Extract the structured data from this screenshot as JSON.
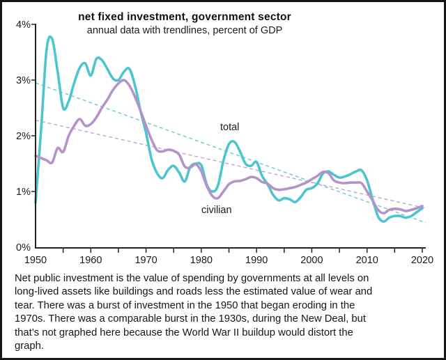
{
  "header": {
    "title": "net fixed investment, government sector",
    "subtitle": "annual data with trendlines, percent of GDP"
  },
  "chart_data": {
    "type": "line",
    "title": "net fixed investment, government sector",
    "subtitle": "annual data with trendlines, percent of GDP",
    "xlabel": "",
    "ylabel": "percent of GDP",
    "xlim": [
      1950,
      2020
    ],
    "ylim": [
      0,
      4
    ],
    "grid": false,
    "legend_position": "inline-labels",
    "x_tick_labels": [
      1950,
      1960,
      1970,
      1980,
      1990,
      2000,
      2010,
      2020
    ],
    "x_minor_tick_step": 5,
    "y_tick_labels": [
      "0%",
      "1%",
      "2%",
      "3%",
      "4%"
    ],
    "x_start_year": 1950,
    "series": [
      {
        "name": "total",
        "color": "#4cc5ce",
        "values": [
          0.8,
          2.1,
          3.55,
          3.74,
          3.15,
          2.5,
          2.62,
          2.95,
          3.22,
          3.3,
          3.08,
          3.38,
          3.36,
          3.2,
          3.03,
          3.0,
          3.15,
          3.2,
          2.9,
          2.45,
          2.05,
          1.58,
          1.33,
          1.24,
          1.39,
          1.46,
          1.34,
          1.18,
          1.44,
          1.5,
          1.47,
          1.12,
          1.0,
          1.1,
          1.55,
          1.85,
          1.89,
          1.72,
          1.5,
          1.46,
          1.53,
          1.28,
          1.13,
          0.94,
          0.84,
          0.88,
          0.86,
          0.81,
          0.9,
          1.03,
          1.06,
          1.14,
          1.32,
          1.36,
          1.3,
          1.25,
          1.27,
          1.31,
          1.36,
          1.38,
          1.2,
          0.86,
          0.55,
          0.46,
          0.53,
          0.56,
          0.56,
          0.53,
          0.56,
          0.63,
          0.7
        ]
      },
      {
        "name": "civilian",
        "color": "#b592c8",
        "values": [
          1.64,
          1.6,
          1.56,
          1.52,
          1.78,
          1.71,
          2.0,
          2.18,
          2.3,
          2.18,
          2.21,
          2.33,
          2.5,
          2.65,
          2.82,
          2.94,
          3.0,
          2.9,
          2.7,
          2.45,
          2.18,
          1.93,
          1.74,
          1.72,
          1.75,
          1.73,
          1.66,
          1.45,
          1.43,
          1.49,
          1.36,
          1.1,
          0.92,
          0.88,
          1.0,
          1.13,
          1.18,
          1.19,
          1.22,
          1.26,
          1.24,
          1.17,
          1.14,
          1.06,
          1.03,
          1.04,
          1.06,
          1.08,
          1.12,
          1.16,
          1.22,
          1.28,
          1.35,
          1.33,
          1.2,
          1.16,
          1.15,
          1.16,
          1.16,
          1.15,
          1.0,
          0.84,
          0.67,
          0.61,
          0.67,
          0.69,
          0.68,
          0.65,
          0.67,
          0.7,
          0.74
        ]
      }
    ],
    "trendlines": [
      {
        "name": "total trend",
        "color": "#5fcdd5",
        "start": [
          1950,
          2.95
        ],
        "end": [
          2020.6,
          0.44
        ]
      },
      {
        "name": "civilian trend",
        "color": "#c3a0d8",
        "start": [
          1950,
          2.28
        ],
        "end": [
          2020.6,
          0.7
        ]
      }
    ],
    "inline_labels": {
      "total": "total",
      "civilian": "civilian"
    }
  },
  "caption_lines": [
    "Net public investment is the value of spending by governments at all levels on",
    "long-lived assets like buildings and roads less the estimated value of wear and",
    "tear. There was a burst of investment in the 1950 that began eroding in the",
    "1970s. There was a comparable burst in the 1930s, during the New Deal, but",
    "that’s not graphed here because the World War II buildup would distort the",
    "graph."
  ]
}
